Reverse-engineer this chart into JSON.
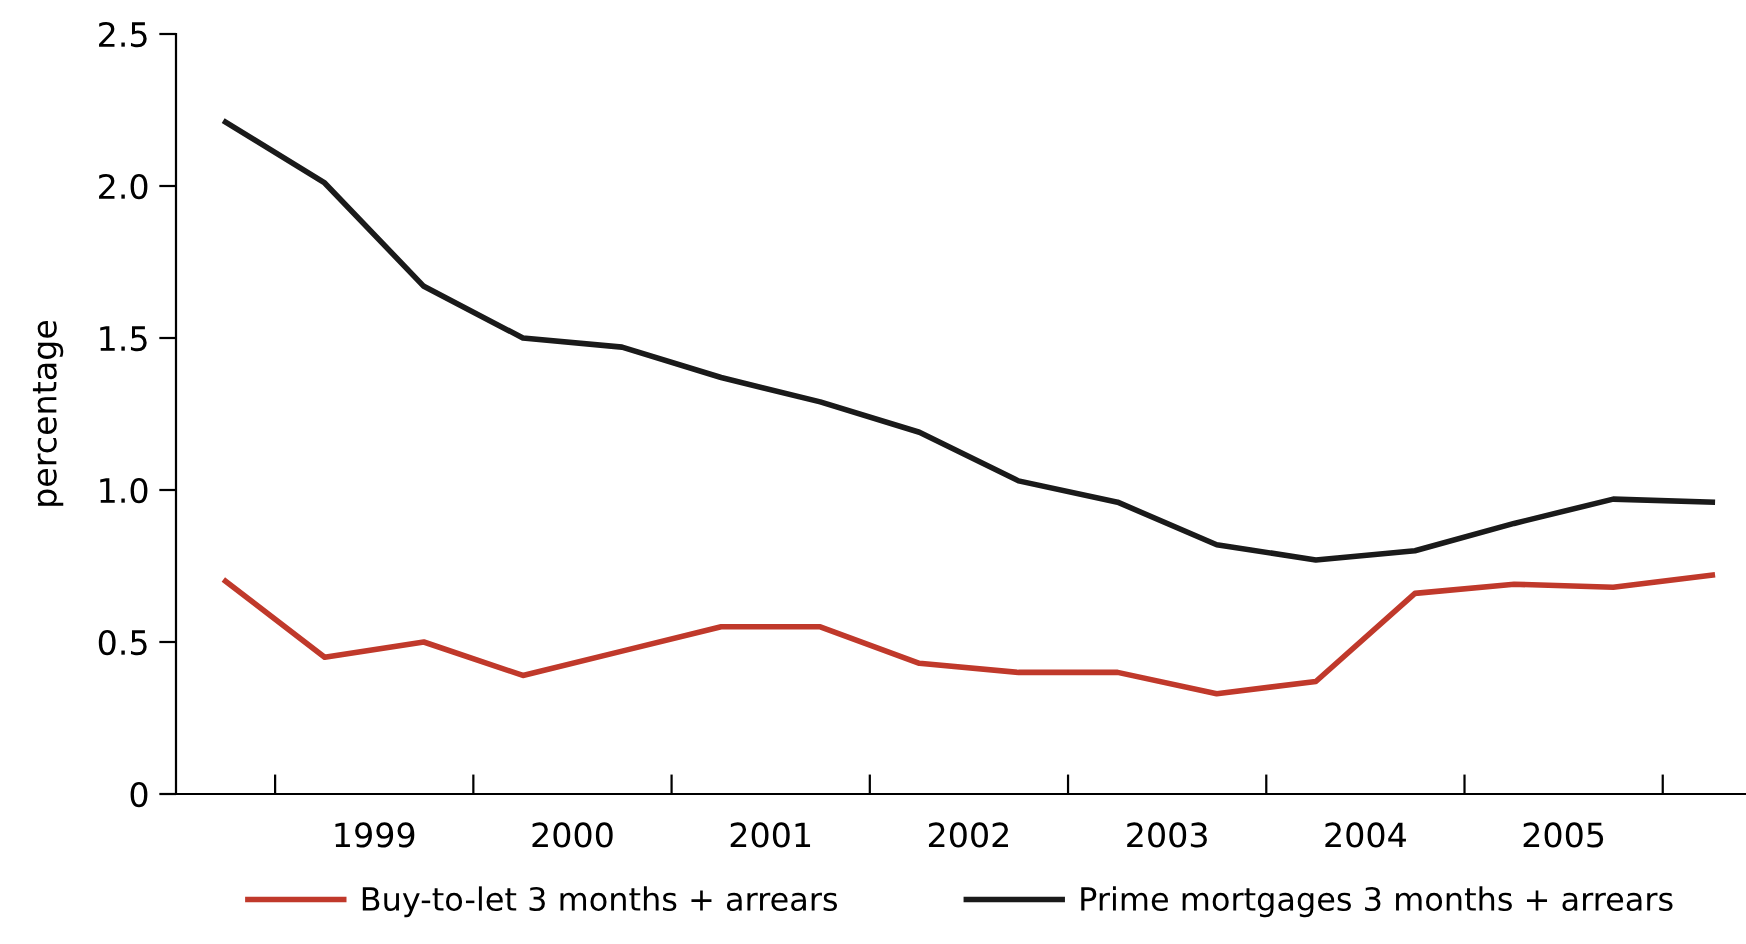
{
  "chart_data": {
    "type": "line",
    "ylabel": "percentage",
    "x": [
      1998.75,
      1999.25,
      1999.75,
      2000.25,
      2000.75,
      2001.25,
      2001.75,
      2002.25,
      2002.75,
      2003.25,
      2003.75,
      2004.25,
      2004.75,
      2005.25,
      2005.75,
      2006.25
    ],
    "series": [
      {
        "name": "Buy-to-let 3 months + arrears",
        "color": "#c0392b",
        "values": [
          0.7,
          0.45,
          0.5,
          0.39,
          0.47,
          0.55,
          0.55,
          0.43,
          0.4,
          0.4,
          0.33,
          0.37,
          0.66,
          0.69,
          0.68,
          0.72
        ]
      },
      {
        "name": "Prime mortgages 3 months + arrears",
        "color": "#1a1a1a",
        "values": [
          2.21,
          2.01,
          1.67,
          1.5,
          1.47,
          1.37,
          1.29,
          1.19,
          1.03,
          0.96,
          0.82,
          0.77,
          0.8,
          0.89,
          0.97,
          0.96
        ]
      }
    ],
    "xlim": [
      1998.5,
      2006.42
    ],
    "xticks": [
      {
        "value": 1999,
        "label": null
      },
      {
        "value": 2000,
        "label": null
      },
      {
        "value": 2001,
        "label": null
      },
      {
        "value": 2002,
        "label": null
      },
      {
        "value": 2003,
        "label": null
      },
      {
        "value": 2004,
        "label": null
      },
      {
        "value": 2005,
        "label": null
      },
      {
        "value": 2006,
        "label": null
      },
      {
        "value": 1999.5,
        "label": "1999"
      },
      {
        "value": 2000.5,
        "label": "2000"
      },
      {
        "value": 2001.5,
        "label": "2001"
      },
      {
        "value": 2002.5,
        "label": "2002"
      },
      {
        "value": 2003.5,
        "label": "2003"
      },
      {
        "value": 2004.5,
        "label": "2004"
      },
      {
        "value": 2005.5,
        "label": "2005"
      }
    ],
    "ylim": [
      0,
      2.5
    ],
    "yticks": [
      0,
      {
        "value": 0.5,
        "label": "0.5"
      },
      {
        "value": 1.0,
        "label": "1.0"
      },
      {
        "value": 1.5,
        "label": "1.5"
      },
      {
        "value": 2.0,
        "label": "2.0"
      },
      {
        "value": 2.5,
        "label": "2.5"
      }
    ],
    "grid": false,
    "legend": "bottom",
    "marker": "none",
    "line_style": "solid"
  }
}
